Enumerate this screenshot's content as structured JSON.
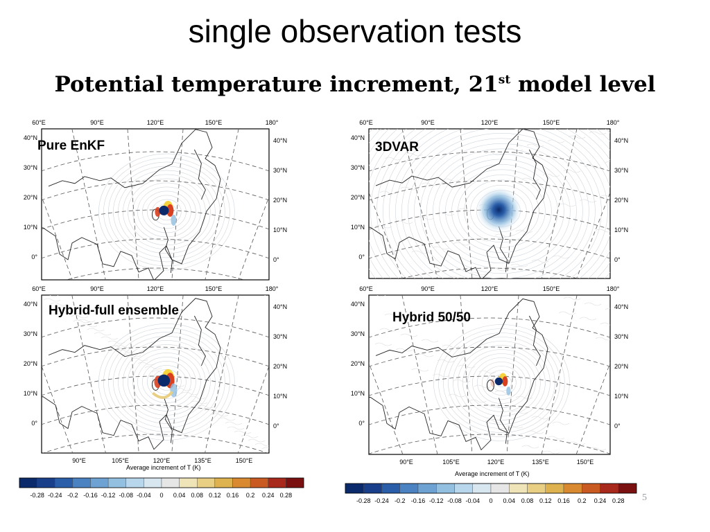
{
  "slide": {
    "title": "single observation tests",
    "subtitle_pre": "Potential temperature increment, 21",
    "subtitle_sup": "st",
    "subtitle_post": " model level",
    "page_number": "5"
  },
  "panels": [
    {
      "label": "Pure EnKF",
      "lon_top": [
        "60°E",
        "90°E",
        "120°E",
        "150°E",
        "180°"
      ],
      "lat_left": [
        "40°N",
        "30°N",
        "20°N",
        "10°N",
        "0°"
      ],
      "lat_right": [
        "40°N",
        "30°N",
        "20°N",
        "10°N",
        "0°"
      ],
      "lon_bottom": [],
      "pattern": "enkf"
    },
    {
      "label": "3DVAR",
      "lon_top": [
        "60°E",
        "90°E",
        "120°E",
        "150°E",
        "180°"
      ],
      "lat_left": [
        "40°N",
        "30°N",
        "20°N",
        "10°N",
        "0°"
      ],
      "lat_right": [
        "40°N",
        "30°N",
        "20°N",
        "10°N",
        "0°"
      ],
      "lon_bottom": [],
      "pattern": "3dvar"
    },
    {
      "label": "Hybrid-full ensemble",
      "lon_top": [
        "60°E",
        "90°E",
        "120°E",
        "150°E",
        "180°"
      ],
      "lat_left": [
        "40°N",
        "30°N",
        "20°N",
        "10°N",
        "0°"
      ],
      "lat_right": [
        "40°N",
        "30°N",
        "20°N",
        "10°N",
        "0°"
      ],
      "lon_bottom": [
        "90°E",
        "105°E",
        "120°E",
        "135°E",
        "150°E"
      ],
      "pattern": "hybridfull"
    },
    {
      "label": "Hybrid 50/50",
      "lon_top": [
        "60°E",
        "90°E",
        "120°E",
        "150°E",
        "180°"
      ],
      "lat_left": [
        "40°N",
        "30°N",
        "20°N",
        "10°N",
        "0°"
      ],
      "lat_right": [
        "40°N",
        "30°N",
        "20°N",
        "10°N",
        "0°"
      ],
      "lon_bottom": [
        "90°E",
        "105°E",
        "120°E",
        "135°E",
        "150°E"
      ],
      "pattern": "hybrid5050"
    }
  ],
  "axis_title": "Average increment of T (K)",
  "colorbar": {
    "ticks": [
      "-0.28",
      "-0.24",
      "-0.2",
      "-0.16",
      "-0.12",
      "-0.08",
      "-0.04",
      "0",
      "0.04",
      "0.08",
      "0.12",
      "0.16",
      "0.2",
      "0.24",
      "0.28"
    ],
    "colors": [
      "#0b2a6b",
      "#1a3f8a",
      "#2a5ea8",
      "#4a82c2",
      "#6ea2d2",
      "#93bfe0",
      "#b8d6ec",
      "#d8e6f0",
      "#e6e6e6",
      "#efe4b8",
      "#e8cf84",
      "#ddb24f",
      "#d98a30",
      "#c85a22",
      "#a8281c",
      "#7a1010"
    ]
  }
}
